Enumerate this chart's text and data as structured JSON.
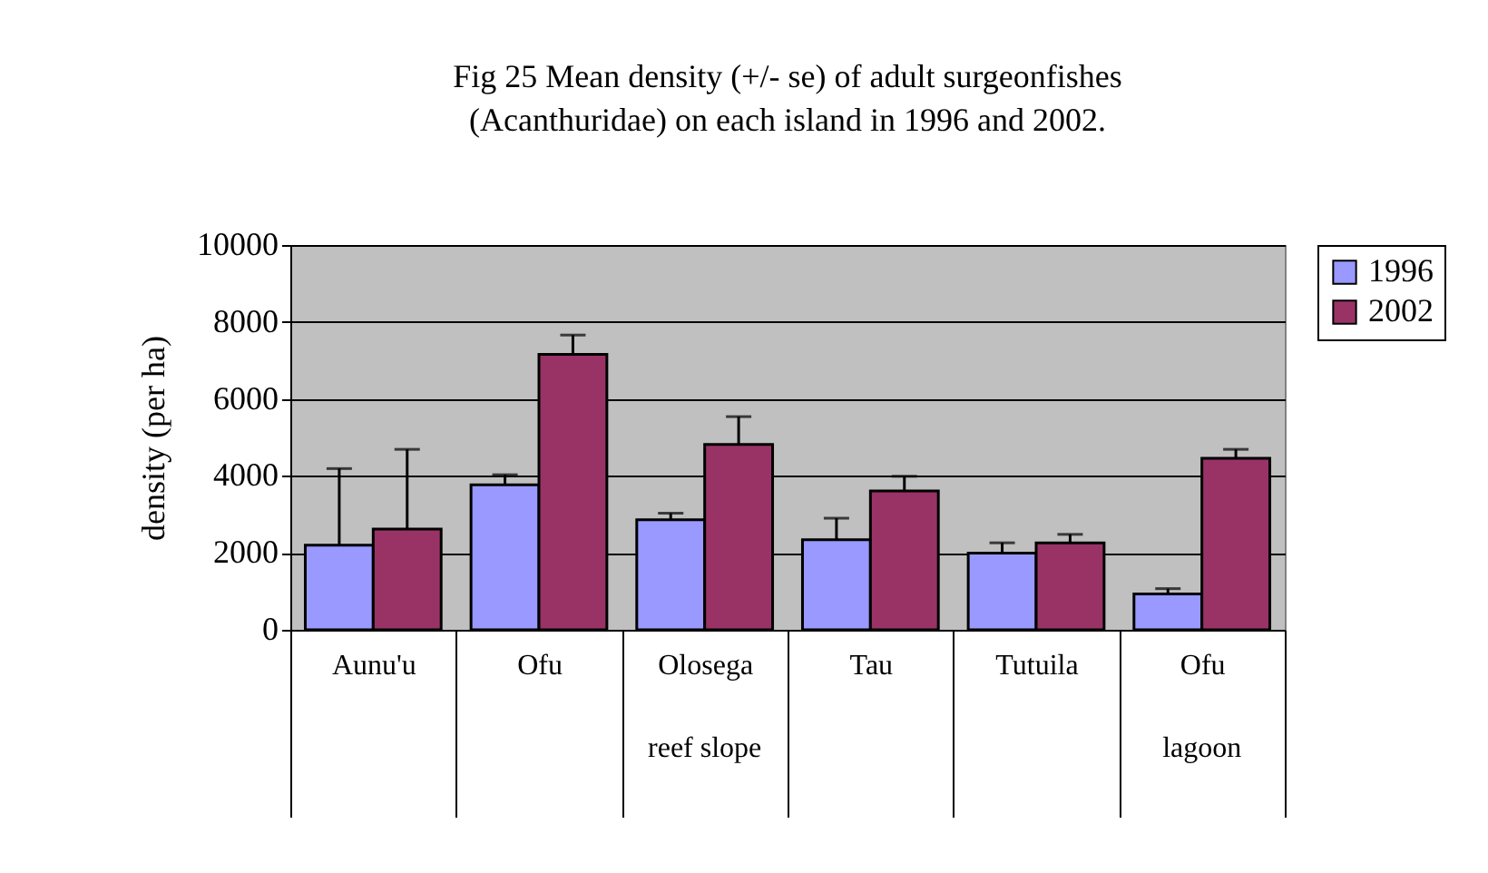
{
  "chart_data": {
    "type": "bar",
    "title": "Fig 25  Mean density (+/- se) of adult surgeonfishes (Acanthuridae) on each island in 1996 and 2002.",
    "ylabel": "density (per ha)",
    "categories": [
      "Aunu'u",
      "Ofu",
      "Olosega",
      "Tau",
      "Tutuila",
      "Ofu"
    ],
    "series": [
      {
        "name": "1996",
        "color": "#9999ff",
        "values": [
          2200,
          3770,
          2860,
          2340,
          1990,
          930
        ],
        "errors": [
          [
            2200,
            4190
          ],
          [
            3770,
            4030
          ],
          [
            2860,
            3030
          ],
          [
            2340,
            2900
          ],
          [
            1990,
            2260
          ],
          [
            930,
            1070
          ]
        ]
      },
      {
        "name": "2002",
        "color": "#993366",
        "values": [
          2620,
          7160,
          4820,
          3610,
          2260,
          4460
        ],
        "errors": [
          [
            2620,
            4690
          ],
          [
            7160,
            7660
          ],
          [
            4820,
            5540
          ],
          [
            3610,
            3990
          ],
          [
            2260,
            2480
          ],
          [
            4460,
            4690
          ]
        ]
      }
    ],
    "annotations": [
      "reef slope",
      "lagoon"
    ],
    "ylim": [
      0,
      10000
    ],
    "yticks": [
      0,
      2000,
      4000,
      6000,
      8000,
      10000
    ],
    "grid": "y",
    "legend": "right"
  }
}
